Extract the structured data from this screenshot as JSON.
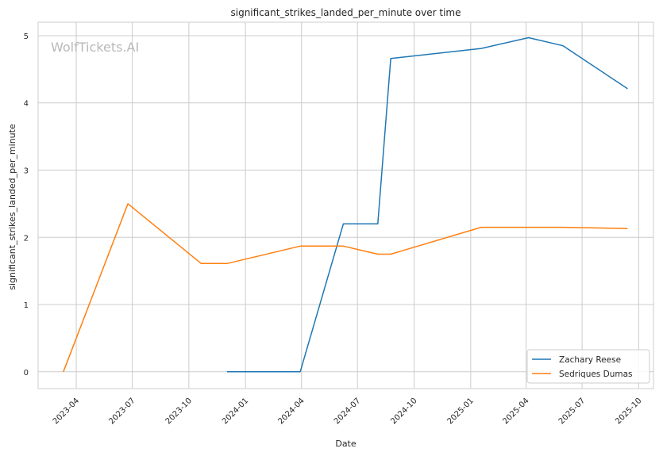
{
  "chart_data": {
    "type": "line",
    "title": "significant_strikes_landed_per_minute over time",
    "xlabel": "Date",
    "ylabel": "significant_strikes_landed_per_minute",
    "watermark": "WolfTickets.AI",
    "grid": true,
    "legend_position": "lower-right",
    "xlim": [
      "2023-01-29",
      "2025-10-25"
    ],
    "ylim": [
      -0.25,
      5.2
    ],
    "x_ticks": [
      {
        "date": "2023-04-01",
        "label": "2023-04"
      },
      {
        "date": "2023-07-01",
        "label": "2023-07"
      },
      {
        "date": "2023-10-01",
        "label": "2023-10"
      },
      {
        "date": "2024-01-01",
        "label": "2024-01"
      },
      {
        "date": "2024-04-01",
        "label": "2024-04"
      },
      {
        "date": "2024-07-01",
        "label": "2024-07"
      },
      {
        "date": "2024-10-01",
        "label": "2024-10"
      },
      {
        "date": "2025-01-01",
        "label": "2025-01"
      },
      {
        "date": "2025-04-01",
        "label": "2025-04"
      },
      {
        "date": "2025-07-01",
        "label": "2025-07"
      },
      {
        "date": "2025-10-01",
        "label": "2025-10"
      }
    ],
    "y_ticks": [
      0,
      1,
      2,
      3,
      4,
      5
    ],
    "series": [
      {
        "name": "Zachary Reese",
        "color": "#1f77b4",
        "points": [
          {
            "x": "2023-12-02",
            "y": 0.0
          },
          {
            "x": "2024-03-30",
            "y": 0.0
          },
          {
            "x": "2024-06-08",
            "y": 2.2
          },
          {
            "x": "2024-08-03",
            "y": 2.2
          },
          {
            "x": "2024-08-24",
            "y": 4.66
          },
          {
            "x": "2025-01-18",
            "y": 4.81
          },
          {
            "x": "2025-04-05",
            "y": 4.97
          },
          {
            "x": "2025-05-31",
            "y": 4.85
          },
          {
            "x": "2025-09-13",
            "y": 4.21
          }
        ]
      },
      {
        "name": "Sedriques Dumas",
        "color": "#ff7f0e",
        "points": [
          {
            "x": "2023-03-11",
            "y": 0.0
          },
          {
            "x": "2023-06-24",
            "y": 2.5
          },
          {
            "x": "2023-10-21",
            "y": 1.61
          },
          {
            "x": "2023-12-02",
            "y": 1.61
          },
          {
            "x": "2024-03-30",
            "y": 1.87
          },
          {
            "x": "2024-06-08",
            "y": 1.87
          },
          {
            "x": "2024-08-03",
            "y": 1.75
          },
          {
            "x": "2024-08-24",
            "y": 1.75
          },
          {
            "x": "2025-01-18",
            "y": 2.15
          },
          {
            "x": "2025-05-31",
            "y": 2.15
          },
          {
            "x": "2025-09-13",
            "y": 2.13
          }
        ]
      }
    ]
  }
}
